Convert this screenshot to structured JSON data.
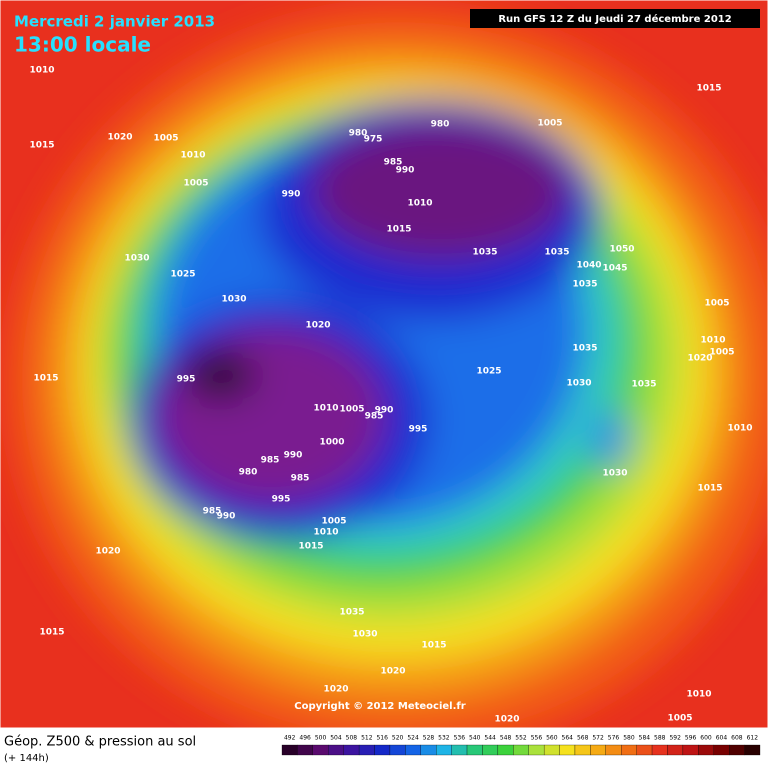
{
  "header": {
    "date": "Mercredi 2 janvier 2013",
    "time": "13:00 locale",
    "run": "Run GFS 12 Z du Jeudi 27 décembre 2012"
  },
  "map": {
    "pressure_labels": [
      1010,
      1015,
      1020,
      1015,
      1005,
      1010,
      1005,
      1030,
      1025,
      1030,
      1020,
      1015,
      995,
      1010,
      1005,
      985,
      990,
      995,
      1000,
      985,
      990,
      980,
      985,
      995,
      985,
      990,
      1005,
      1010,
      1015,
      1020,
      1035,
      1030,
      1015,
      1020,
      1020,
      1015,
      1020,
      1005,
      1010,
      980,
      975,
      980,
      985,
      990,
      990,
      1010,
      1005,
      1015,
      1035,
      1035,
      1050,
      1040,
      1045,
      1035,
      1005,
      1010,
      1005,
      1020,
      1035,
      1030,
      1035,
      1025,
      1010,
      1030,
      1015
    ],
    "copyright": "Copyright © 2012 Meteociel.fr"
  },
  "footer": {
    "title": "Géop. Z500 & pression au sol",
    "subtitle": "(+ 144h)",
    "colorbar": [
      492,
      496,
      500,
      504,
      508,
      512,
      516,
      520,
      524,
      528,
      532,
      536,
      540,
      544,
      548,
      552,
      556,
      560,
      564,
      568,
      572,
      576,
      580,
      584,
      588,
      592,
      596,
      600,
      604,
      608,
      612
    ]
  }
}
